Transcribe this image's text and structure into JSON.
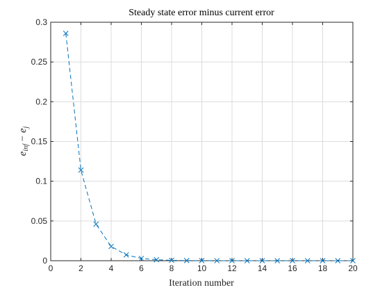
{
  "chart_data": {
    "type": "line",
    "title": "Steady state error minus current error",
    "xlabel": "Iteration number",
    "ylabel": {
      "main": "e",
      "sub1": "inf",
      "op": " − ",
      "main2": "e",
      "sub2": "j"
    },
    "xlim": [
      0,
      20
    ],
    "ylim": [
      0,
      0.3
    ],
    "xticks": [
      "0",
      "2",
      "4",
      "6",
      "8",
      "10",
      "12",
      "14",
      "16",
      "18",
      "20"
    ],
    "yticks": [
      "0",
      "0.05",
      "0.1",
      "0.15",
      "0.2",
      "0.25",
      "0.3"
    ],
    "grid": true,
    "line_style": "dashed",
    "marker": "x",
    "color": "#0072BD",
    "series": [
      {
        "x": [
          1,
          2,
          3,
          4,
          5,
          6,
          7,
          8,
          9,
          10,
          11,
          12,
          13,
          14,
          15,
          16,
          17,
          18,
          19,
          20
        ],
        "values": [
          0.286,
          0.114,
          0.046,
          0.018,
          0.0073,
          0.0029,
          0.0012,
          0.0005,
          0.0002,
          0.0001,
          5e-05,
          2e-05,
          1e-05,
          0,
          0,
          0,
          0,
          0,
          0,
          0
        ]
      }
    ]
  }
}
